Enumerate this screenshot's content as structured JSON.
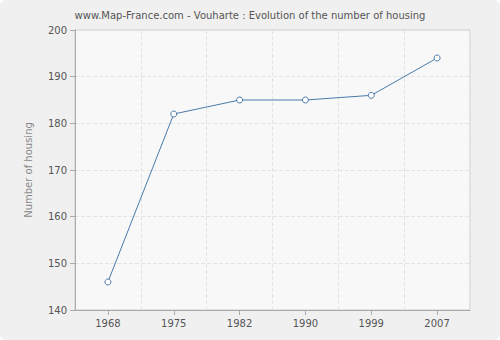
{
  "chart_data": {
    "type": "line",
    "title": "www.Map-France.com - Vouharte : Evolution of the number of housing",
    "y_label": "Number of housing",
    "categories": [
      "1968",
      "1975",
      "1982",
      "1990",
      "1999",
      "2007"
    ],
    "values": [
      146,
      182,
      185,
      185,
      186,
      194
    ],
    "color": "#4a7aab",
    "marker": "circle",
    "ylim": [
      140,
      200
    ],
    "yticks": [
      140,
      150,
      160,
      170,
      180,
      190,
      200
    ],
    "grid": true
  }
}
